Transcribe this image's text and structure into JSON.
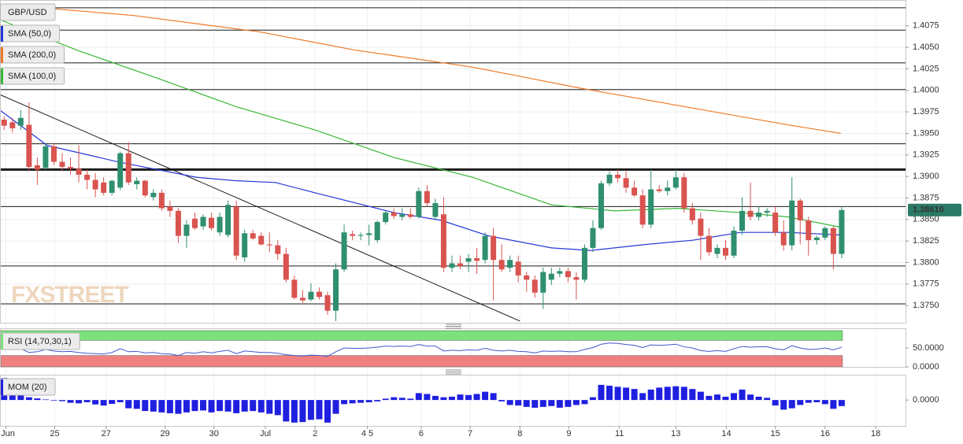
{
  "chart_data": [
    {
      "type": "candlestick",
      "name": "GBP/USD",
      "watermark": "FXSTREET",
      "up_color": "#2f8f70",
      "down_color": "#d9534f",
      "grid": true,
      "xlim": [
        -0.5,
        108.7
      ],
      "xticks": [
        {
          "value": 0.2,
          "label": "Jun"
        },
        {
          "value": 6.1,
          "label": "25"
        },
        {
          "value": 12.3,
          "label": "27"
        },
        {
          "value": 19.4,
          "label": "29"
        },
        {
          "value": 25.3,
          "label": "30"
        },
        {
          "value": 31.5,
          "label": "Jul"
        },
        {
          "value": 37.5,
          "label": "2"
        },
        {
          "value": 43.8,
          "label": "4 5"
        },
        {
          "value": 50.3,
          "label": "6"
        },
        {
          "value": 56.2,
          "label": "7"
        },
        {
          "value": 62.2,
          "label": "8"
        },
        {
          "value": 68.1,
          "label": "9"
        },
        {
          "value": 74.2,
          "label": "11"
        },
        {
          "value": 81.0,
          "label": "13"
        },
        {
          "value": 87.1,
          "label": "14"
        },
        {
          "value": 93.0,
          "label": "15"
        },
        {
          "value": 99.0,
          "label": "16"
        },
        {
          "value": 105.1,
          "label": "18"
        }
      ],
      "ylim": [
        1.373,
        1.4105
      ],
      "yticks": [
        1.4075,
        {
          "value": 1.405,
          "label": "1.4050"
        },
        1.4025,
        {
          "value": 1.4,
          "label": "1.4000"
        },
        1.3975,
        {
          "value": 1.395,
          "label": "1.3950"
        },
        1.3925,
        {
          "value": 1.39,
          "label": "1.3900"
        },
        1.3875,
        {
          "value": 1.385,
          "label": "1.3850"
        },
        1.3825,
        {
          "value": 1.38,
          "label": "1.3800"
        },
        1.3775,
        {
          "value": 1.375,
          "label": "1.3750"
        }
      ],
      "candles": [
        [
          1.3966,
          1.397,
          1.3954,
          1.3959
        ],
        [
          1.3963,
          1.3968,
          1.3951,
          1.3956
        ],
        [
          1.3959,
          1.3977,
          1.3954,
          1.3968
        ],
        [
          1.396,
          1.3986,
          1.3906,
          1.3911
        ],
        [
          1.3913,
          1.3922,
          1.389,
          1.3908
        ],
        [
          1.391,
          1.3939,
          1.3908,
          1.3935
        ],
        [
          1.3935,
          1.3939,
          1.3913,
          1.3917
        ],
        [
          1.3917,
          1.3927,
          1.3906,
          1.3911
        ],
        [
          1.3911,
          1.3922,
          1.3902,
          1.3909
        ],
        [
          1.3909,
          1.3936,
          1.3893,
          1.3902
        ],
        [
          1.3902,
          1.3908,
          1.3885,
          1.3896
        ],
        [
          1.3896,
          1.3904,
          1.3876,
          1.3885
        ],
        [
          1.3893,
          1.3899,
          1.3878,
          1.3881
        ],
        [
          1.3881,
          1.3896,
          1.3878,
          1.3895
        ],
        [
          1.3887,
          1.3929,
          1.3884,
          1.3927
        ],
        [
          1.3927,
          1.394,
          1.389,
          1.3893
        ],
        [
          1.3891,
          1.3899,
          1.3885,
          1.3895
        ],
        [
          1.3895,
          1.3896,
          1.3876,
          1.3878
        ],
        [
          1.3876,
          1.3885,
          1.3872,
          1.3881
        ],
        [
          1.3881,
          1.3885,
          1.386,
          1.3863
        ],
        [
          1.3865,
          1.3872,
          1.3853,
          1.386
        ],
        [
          1.386,
          1.3863,
          1.3823,
          1.3831
        ],
        [
          1.3831,
          1.3849,
          1.3817,
          1.3844
        ],
        [
          1.3851,
          1.3858,
          1.3838,
          1.384
        ],
        [
          1.3842,
          1.3856,
          1.3838,
          1.3853
        ],
        [
          1.3852,
          1.3858,
          1.3837,
          1.384
        ],
        [
          1.3835,
          1.3858,
          1.3831,
          1.3853
        ],
        [
          1.3832,
          1.3872,
          1.3829,
          1.3867
        ],
        [
          1.3865,
          1.3872,
          1.3803,
          1.3808
        ],
        [
          1.3806,
          1.3838,
          1.3801,
          1.3834
        ],
        [
          1.3834,
          1.3838,
          1.3826,
          1.3828
        ],
        [
          1.3831,
          1.3835,
          1.382,
          1.3821
        ],
        [
          1.3821,
          1.3835,
          1.3812,
          1.382
        ],
        [
          1.382,
          1.3826,
          1.3803,
          1.381
        ],
        [
          1.381,
          1.3817,
          1.3777,
          1.378
        ],
        [
          1.378,
          1.3785,
          1.3757,
          1.3759
        ],
        [
          1.3759,
          1.3768,
          1.3753,
          1.3756
        ],
        [
          1.3757,
          1.3776,
          1.3755,
          1.3766
        ],
        [
          1.3766,
          1.3771,
          1.3757,
          1.376
        ],
        [
          1.3762,
          1.3766,
          1.3739,
          1.3744
        ],
        [
          1.3744,
          1.3799,
          1.3732,
          1.3792
        ],
        [
          1.3792,
          1.3844,
          1.3789,
          1.3835
        ],
        [
          1.3833,
          1.3837,
          1.3826,
          1.3831
        ],
        [
          1.3831,
          1.3835,
          1.3826,
          1.3832
        ],
        [
          1.3832,
          1.3844,
          1.382,
          1.3834
        ],
        [
          1.3826,
          1.3849,
          1.3823,
          1.3847
        ],
        [
          1.3847,
          1.386,
          1.3844,
          1.3858
        ],
        [
          1.3858,
          1.3863,
          1.3851,
          1.3854
        ],
        [
          1.3853,
          1.3863,
          1.3849,
          1.3856
        ],
        [
          1.3856,
          1.3863,
          1.3851,
          1.3853
        ],
        [
          1.3853,
          1.3887,
          1.3851,
          1.3883
        ],
        [
          1.3883,
          1.389,
          1.3865,
          1.3869
        ],
        [
          1.3853,
          1.3874,
          1.3849,
          1.3869
        ],
        [
          1.3856,
          1.3876,
          1.3789,
          1.3794
        ],
        [
          1.3794,
          1.3808,
          1.3789,
          1.3799
        ],
        [
          1.3799,
          1.3808,
          1.3792,
          1.3796
        ],
        [
          1.3801,
          1.381,
          1.3789,
          1.3805
        ],
        [
          1.3805,
          1.3817,
          1.3787,
          1.3802
        ],
        [
          1.3803,
          1.3835,
          1.3799,
          1.3831
        ],
        [
          1.3831,
          1.384,
          1.3756,
          1.3803
        ],
        [
          1.3803,
          1.3821,
          1.3789,
          1.3792
        ],
        [
          1.3794,
          1.3808,
          1.3789,
          1.3803
        ],
        [
          1.3801,
          1.3808,
          1.3777,
          1.3785
        ],
        [
          1.3785,
          1.3789,
          1.3766,
          1.378
        ],
        [
          1.378,
          1.3785,
          1.3759,
          1.3765
        ],
        [
          1.3765,
          1.3794,
          1.3746,
          1.3789
        ],
        [
          1.378,
          1.3794,
          1.3774,
          1.3787
        ],
        [
          1.3787,
          1.3794,
          1.3783,
          1.379
        ],
        [
          1.379,
          1.3794,
          1.3777,
          1.3783
        ],
        [
          1.3783,
          1.3789,
          1.3757,
          1.378
        ],
        [
          1.378,
          1.3821,
          1.3777,
          1.3817
        ],
        [
          1.3817,
          1.3849,
          1.3812,
          1.384
        ],
        [
          1.384,
          1.3895,
          1.3838,
          1.3892
        ],
        [
          1.3892,
          1.3906,
          1.3889,
          1.3902
        ],
        [
          1.3902,
          1.3908,
          1.3893,
          1.3898
        ],
        [
          1.3898,
          1.3906,
          1.3881,
          1.3887
        ],
        [
          1.3887,
          1.3895,
          1.3876,
          1.3878
        ],
        [
          1.3878,
          1.3885,
          1.384,
          1.3844
        ],
        [
          1.3844,
          1.3908,
          1.384,
          1.3885
        ],
        [
          1.3885,
          1.389,
          1.3881,
          1.3883
        ],
        [
          1.3883,
          1.3895,
          1.3878,
          1.3887
        ],
        [
          1.3887,
          1.3908,
          1.3885,
          1.3899
        ],
        [
          1.3899,
          1.3904,
          1.3858,
          1.3863
        ],
        [
          1.3863,
          1.3869,
          1.3844,
          1.3849
        ],
        [
          1.3851,
          1.3858,
          1.3803,
          1.3831
        ],
        [
          1.3831,
          1.384,
          1.3808,
          1.3812
        ],
        [
          1.381,
          1.3821,
          1.3805,
          1.3817
        ],
        [
          1.3817,
          1.3826,
          1.3803,
          1.3808
        ],
        [
          1.3808,
          1.3842,
          1.3805,
          1.3837
        ],
        [
          1.3837,
          1.3876,
          1.3832,
          1.386
        ],
        [
          1.386,
          1.3893,
          1.3849,
          1.3853
        ],
        [
          1.3853,
          1.3865,
          1.3849,
          1.3858
        ],
        [
          1.3858,
          1.3863,
          1.3853,
          1.386
        ],
        [
          1.3858,
          1.3865,
          1.3831,
          1.3835
        ],
        [
          1.3835,
          1.3849,
          1.3814,
          1.382
        ],
        [
          1.382,
          1.3899,
          1.3814,
          1.3872
        ],
        [
          1.3872,
          1.3874,
          1.3821,
          1.3849
        ],
        [
          1.3849,
          1.3853,
          1.3808,
          1.3826
        ],
        [
          1.3826,
          1.3831,
          1.3821,
          1.3829
        ],
        [
          1.3829,
          1.3842,
          1.3826,
          1.384
        ],
        [
          1.384,
          1.3842,
          1.3792,
          1.381
        ],
        [
          1.381,
          1.3865,
          1.3805,
          1.3861
        ]
      ],
      "series": [
        {
          "name": "SMA (50,0)",
          "color": "#2438d8",
          "x": [
            -0.5,
            5.2,
            13.7,
            23.2,
            28.0,
            32.7,
            37.5,
            47.0,
            52.7,
            58.4,
            66.0,
            70.7,
            77.4,
            83.1,
            88.8,
            94.5,
            100.9
          ],
          "values": [
            1.3977,
            1.3936,
            1.3917,
            1.3899,
            1.3895,
            1.3893,
            1.3881,
            1.3858,
            1.3849,
            1.3831,
            1.3817,
            1.3814,
            1.3821,
            1.3826,
            1.3835,
            1.3835,
            1.3832
          ]
        },
        {
          "name": "SMA (200,0)",
          "color": "#f07a26",
          "x": [
            -0.5,
            15.6,
            30.8,
            42.2,
            56.5,
            69.8,
            82.1,
            94.5,
            100.9
          ],
          "values": [
            1.41,
            1.4087,
            1.4068,
            1.4047,
            1.4027,
            1.4002,
            1.3981,
            1.396,
            1.395
          ]
        },
        {
          "name": "SMA (100,0)",
          "color": "#36b836",
          "x": [
            -0.5,
            9.0,
            18.5,
            28.0,
            37.5,
            47.0,
            56.5,
            66.0,
            73.6,
            81.2,
            88.8,
            94.5,
            100.9
          ],
          "values": [
            1.4082,
            1.4046,
            1.4014,
            1.3981,
            1.3954,
            1.3922,
            1.3899,
            1.3867,
            1.386,
            1.3863,
            1.3858,
            1.3853,
            1.3841
          ]
        }
      ],
      "trendline": {
        "color": "#1a1a1a",
        "x": [
          -0.5,
          62.2
        ],
        "values": [
          1.3995,
          1.3732
        ]
      },
      "levels": [
        1.4096,
        1.407,
        1.4032,
        1.4001,
        1.3938,
        1.3865,
        1.3796,
        1.3752
      ],
      "major_levels": [
        1.3908
      ],
      "level_color": "#1a1a1a",
      "last_price": {
        "value": 1.3861,
        "label": "1.38610",
        "color": "#2a7a66"
      }
    },
    {
      "type": "line",
      "name": "RSI (14,70,30,1)",
      "color": "#4257cc",
      "ylim": [
        0,
        100
      ],
      "yticks": [
        {
          "value": 50,
          "label": "50.0000"
        },
        {
          "value": 0,
          "label": "0.0000"
        }
      ],
      "overbought": 70,
      "oversold": 30,
      "overbought_color": "#7be27b",
      "oversold_color": "#f08080",
      "values": [
        47,
        46,
        48,
        38,
        40,
        46,
        42,
        40,
        41,
        38,
        36,
        35,
        34,
        38,
        48,
        40,
        41,
        37,
        38,
        35,
        34,
        30,
        38,
        36,
        40,
        37,
        41,
        44,
        35,
        42,
        40,
        38,
        38,
        36,
        32,
        30,
        29,
        31,
        30,
        28,
        40,
        50,
        49,
        49,
        50,
        52,
        55,
        54,
        55,
        54,
        59,
        55,
        55,
        42,
        44,
        43,
        45,
        44,
        49,
        44,
        42,
        44,
        41,
        40,
        37,
        42,
        41,
        42,
        40,
        40,
        46,
        51,
        60,
        63,
        62,
        59,
        57,
        51,
        58,
        57,
        58,
        60,
        53,
        50,
        43,
        41,
        43,
        41,
        48,
        54,
        52,
        53,
        53,
        48,
        45,
        56,
        50,
        46,
        47,
        50,
        45,
        52
      ]
    },
    {
      "type": "bar",
      "name": "MOM (20)",
      "color": "#1f1fe0",
      "ylim": [
        -0.0094,
        0.0089
      ],
      "yticks": [
        {
          "value": 0,
          "label": "0.0000"
        }
      ],
      "values": [
        0.008,
        0.0075,
        0.0078,
        0.001,
        0.0006,
        0.0002,
        -0.0002,
        -0.0004,
        -0.001,
        -0.0012,
        -0.0008,
        -0.0016,
        -0.002,
        -0.0014,
        -0.0008,
        -0.003,
        -0.0032,
        -0.004,
        -0.0042,
        -0.0045,
        -0.0048,
        -0.005,
        -0.0045,
        -0.004,
        -0.0038,
        -0.0045,
        -0.004,
        -0.0042,
        -0.0048,
        -0.0042,
        -0.004,
        -0.0045,
        -0.005,
        -0.0055,
        -0.0078,
        -0.0082,
        -0.008,
        -0.0072,
        -0.007,
        -0.0082,
        -0.005,
        -0.0015,
        -0.0012,
        -0.001,
        -0.0008,
        -0.0005,
        0.0005,
        0.001,
        0.0008,
        0.0005,
        0.0025,
        0.0022,
        0.0015,
        0.001,
        0.0012,
        0.002,
        0.0018,
        0.0022,
        0.003,
        0.0025,
        -0.0005,
        -0.0018,
        -0.002,
        -0.0025,
        -0.0028,
        -0.0025,
        -0.0022,
        -0.0028,
        -0.0025,
        -0.0018,
        -0.0015,
        0.001,
        0.0055,
        0.0052,
        0.0048,
        0.0045,
        0.004,
        0.0025,
        0.0038,
        0.0045,
        0.0048,
        0.005,
        0.0048,
        0.004,
        0.003,
        0.0015,
        0.002,
        0.0012,
        0.0025,
        0.0038,
        0.002,
        0.0012,
        0.0008,
        -0.002,
        -0.0035,
        -0.003,
        -0.0018,
        -0.001,
        -0.0008,
        -0.0015,
        -0.0032,
        -0.0022
      ]
    }
  ]
}
